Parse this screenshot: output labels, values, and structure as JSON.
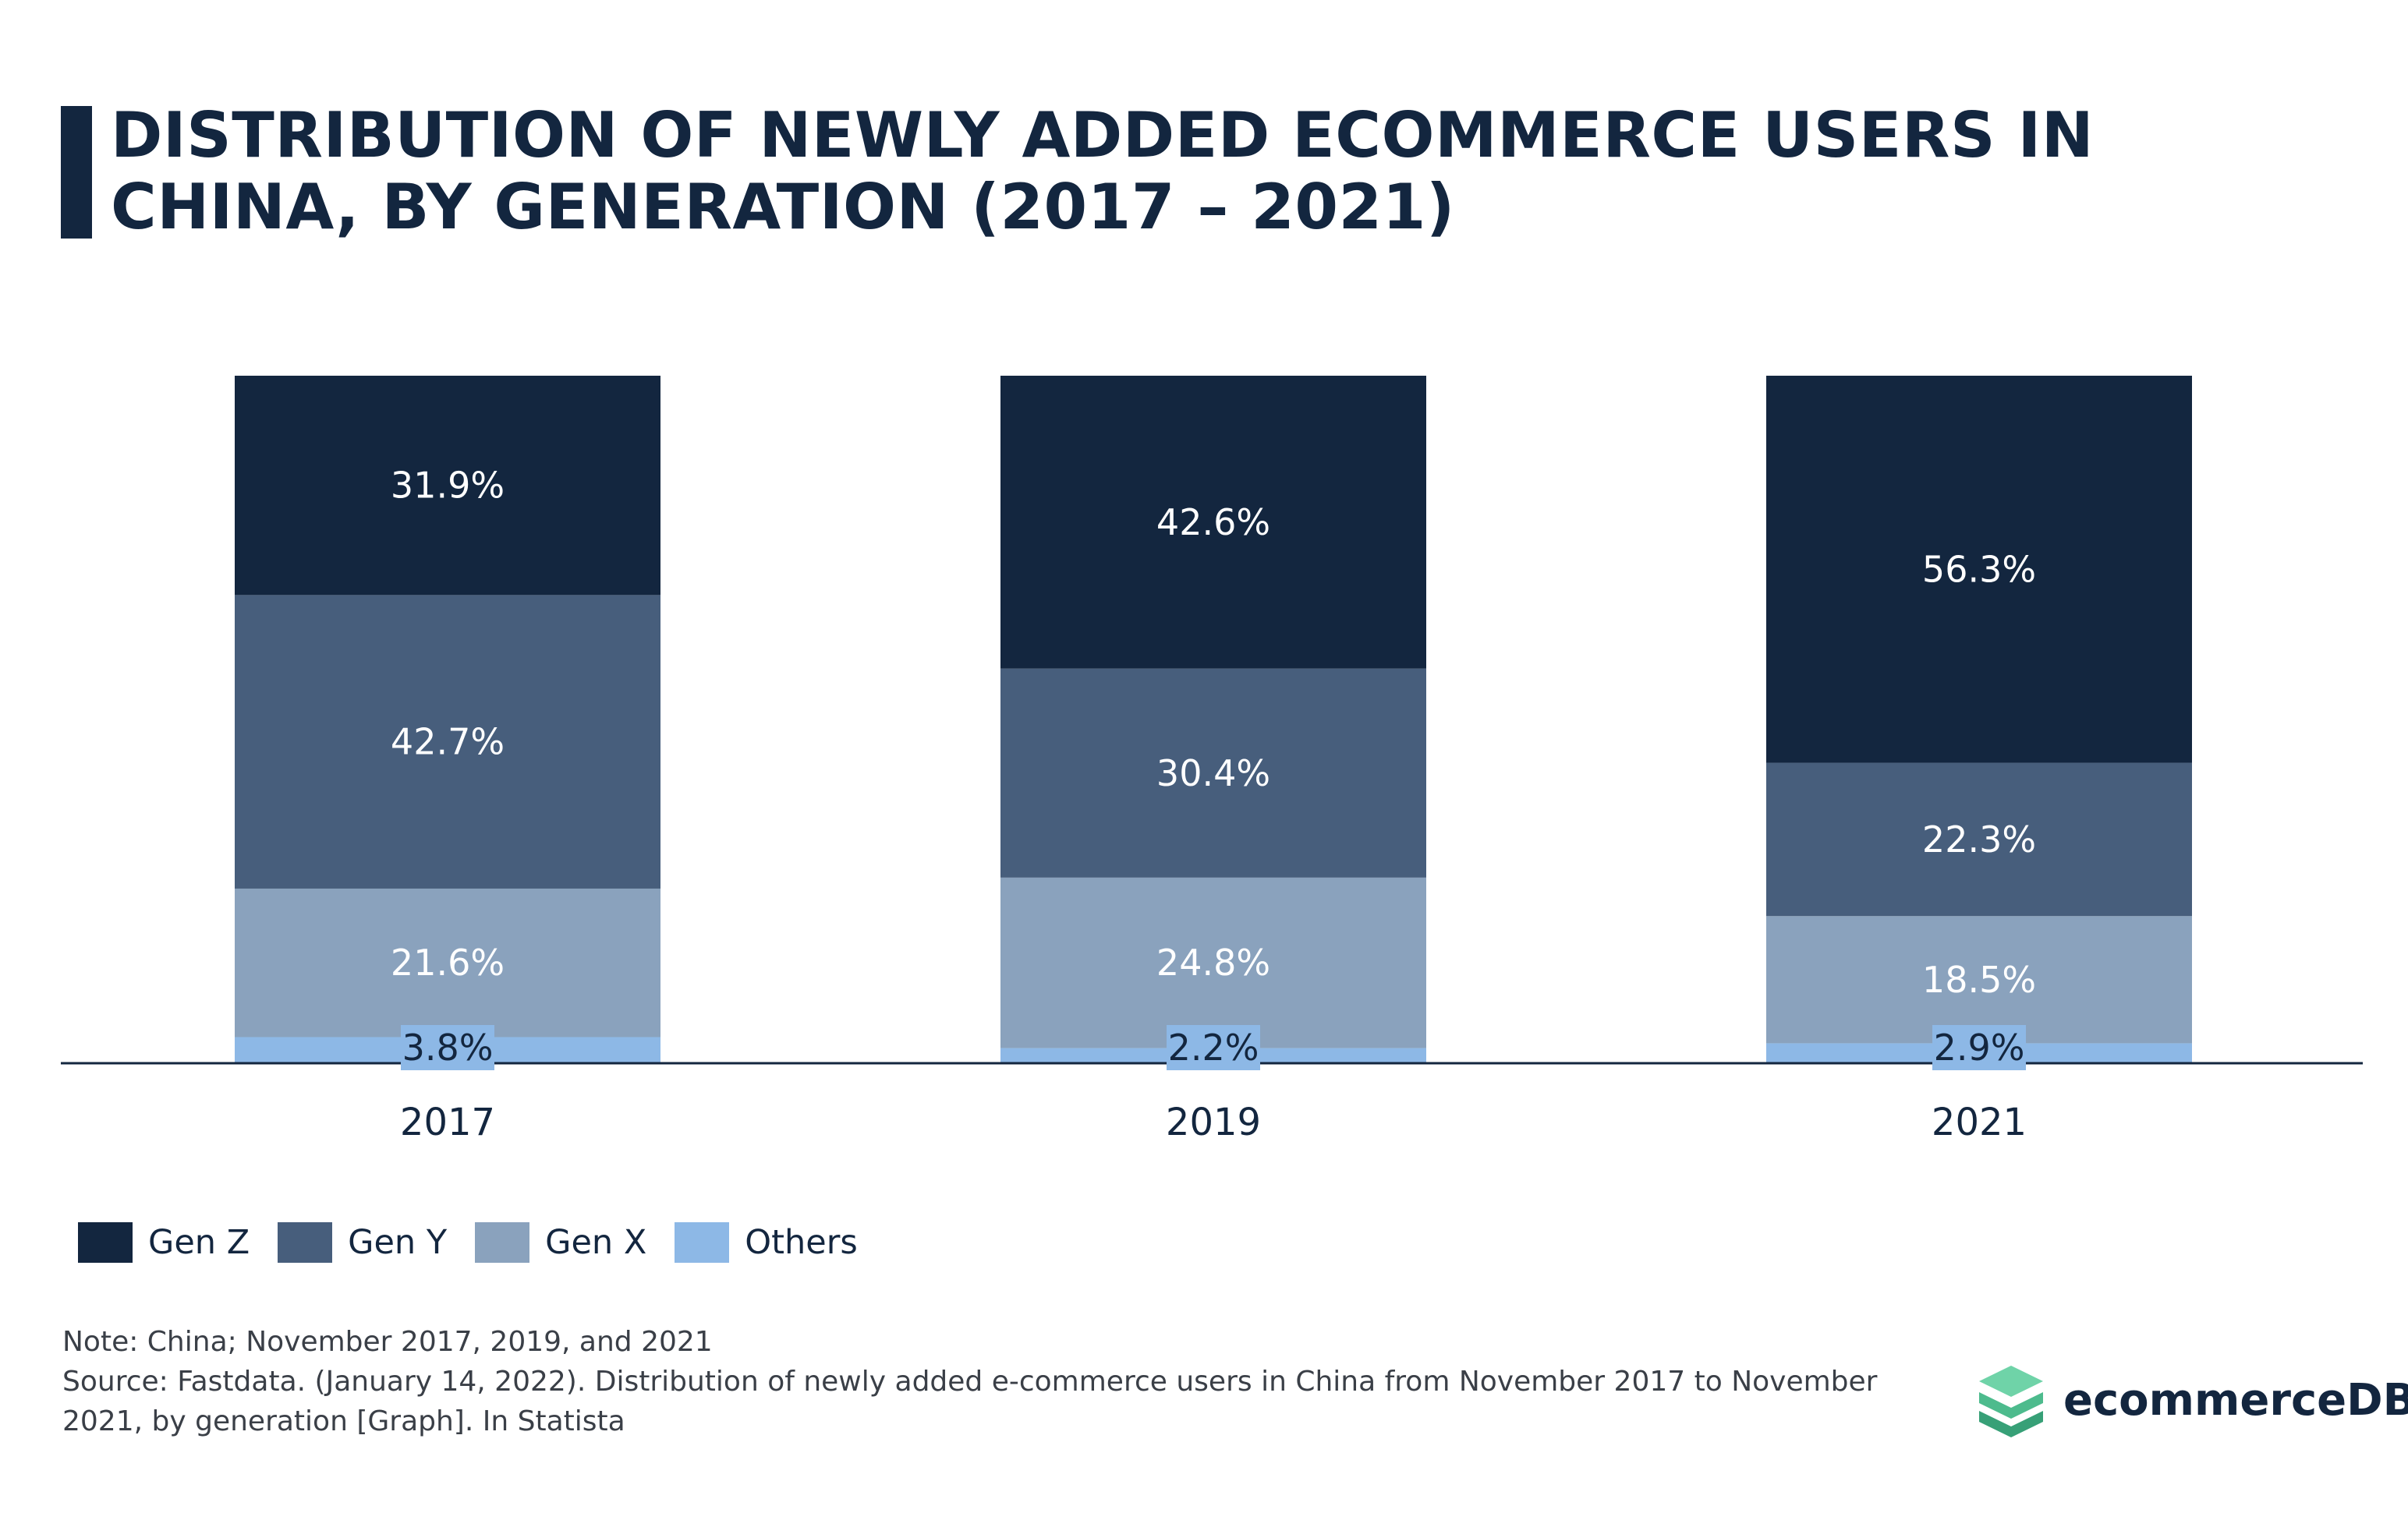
{
  "title": "DISTRIBUTION OF NEWLY ADDED ECOMMERCE USERS IN CHINA, BY GENERATION (2017 – 2021)",
  "note": "Note: China; November 2017, 2019, and 2021",
  "source": "Source: Fastdata. (January 14, 2022). Distribution of newly added e-commerce users in China from November 2017 to November 2021, by generation [Graph]. In Statista",
  "brand": {
    "name": "ecommerceDB",
    "logo_icon": "stacked-layers-logo-icon"
  },
  "colors": {
    "gen_z": "#13263f",
    "gen_y": "#475e7c",
    "gen_x": "#8aa2bd",
    "others": "#8db8e6",
    "text_dark": "#13263f",
    "brand_green": "#4dbb8d"
  },
  "chart_data": {
    "type": "bar",
    "stacked": true,
    "categories": [
      "2017",
      "2019",
      "2021"
    ],
    "series": [
      {
        "name": "Others",
        "values": [
          3.8,
          2.2,
          2.9
        ],
        "labels": [
          "3.8%",
          "2.2%",
          "2.9%"
        ],
        "color": "#8db8e6"
      },
      {
        "name": "Gen X",
        "values": [
          21.6,
          24.8,
          18.5
        ],
        "labels": [
          "21.6%",
          "24.8%",
          "18.5%"
        ],
        "color": "#8aa2bd"
      },
      {
        "name": "Gen Y",
        "values": [
          42.7,
          30.4,
          22.3
        ],
        "labels": [
          "42.7%",
          "30.4%",
          "22.3%"
        ],
        "color": "#475e7c"
      },
      {
        "name": "Gen Z",
        "values": [
          31.9,
          42.6,
          56.3
        ],
        "labels": [
          "31.9%",
          "42.6%",
          "56.3%"
        ],
        "color": "#13263f"
      }
    ],
    "legend": [
      "Gen Z",
      "Gen Y",
      "Gen X",
      "Others"
    ],
    "ylim": [
      0,
      100
    ],
    "grid": false,
    "legend_position": "bottom-left"
  }
}
